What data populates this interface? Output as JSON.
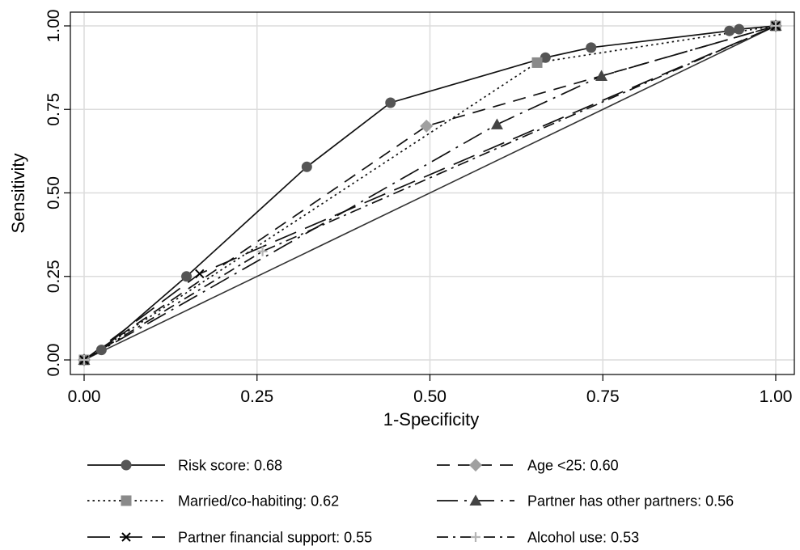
{
  "chart_data": {
    "type": "line",
    "xlabel": "1-Specificity",
    "ylabel": "Sensitivity",
    "xlim": [
      0,
      1
    ],
    "ylim": [
      0,
      1
    ],
    "xticks": [
      "0.00",
      "0.25",
      "0.50",
      "0.75",
      "1.00"
    ],
    "yticks": [
      "0.00",
      "0.25",
      "0.50",
      "0.75",
      "1.00"
    ],
    "grid": true,
    "legend_position": "bottom",
    "reference_line": [
      [
        0,
        0
      ],
      [
        1,
        1
      ]
    ],
    "series": [
      {
        "name": "Risk score: 0.68",
        "marker": "circle",
        "dash": "solid",
        "color": "#555555",
        "points": [
          [
            0,
            0
          ],
          [
            0.025,
            0.03
          ],
          [
            0.148,
            0.25
          ],
          [
            0.322,
            0.578
          ],
          [
            0.443,
            0.77
          ],
          [
            0.667,
            0.905
          ],
          [
            0.733,
            0.935
          ],
          [
            0.933,
            0.985
          ],
          [
            0.947,
            0.99
          ],
          [
            1,
            1
          ]
        ]
      },
      {
        "name": "Age <25: 0.60",
        "marker": "diamond",
        "dash": "dashed",
        "color": "#a0a0a0",
        "points": [
          [
            0,
            0
          ],
          [
            0.495,
            0.7
          ],
          [
            1,
            1
          ]
        ]
      },
      {
        "name": "Married/co-habiting: 0.62",
        "marker": "square",
        "dash": "dotted",
        "color": "#8a8a8a",
        "points": [
          [
            0,
            0
          ],
          [
            0.655,
            0.89
          ],
          [
            1,
            1
          ]
        ]
      },
      {
        "name": "Partner has other partners: 0.56",
        "marker": "triangle",
        "dash": "longdashdot",
        "color": "#444444",
        "points": [
          [
            0,
            0
          ],
          [
            0.597,
            0.705
          ],
          [
            0.748,
            0.85
          ],
          [
            1,
            1
          ]
        ]
      },
      {
        "name": "Partner financial support: 0.55",
        "marker": "x",
        "dash": "longdash",
        "color": "#000000",
        "points": [
          [
            0,
            0
          ],
          [
            0.167,
            0.258
          ],
          [
            1,
            1
          ]
        ]
      },
      {
        "name": "Alcohol use: 0.53",
        "marker": "plus",
        "dash": "dashdot",
        "color": "#b5b5b5",
        "points": [
          [
            0,
            0
          ],
          [
            0.258,
            0.325
          ],
          [
            1,
            1
          ]
        ]
      }
    ]
  }
}
